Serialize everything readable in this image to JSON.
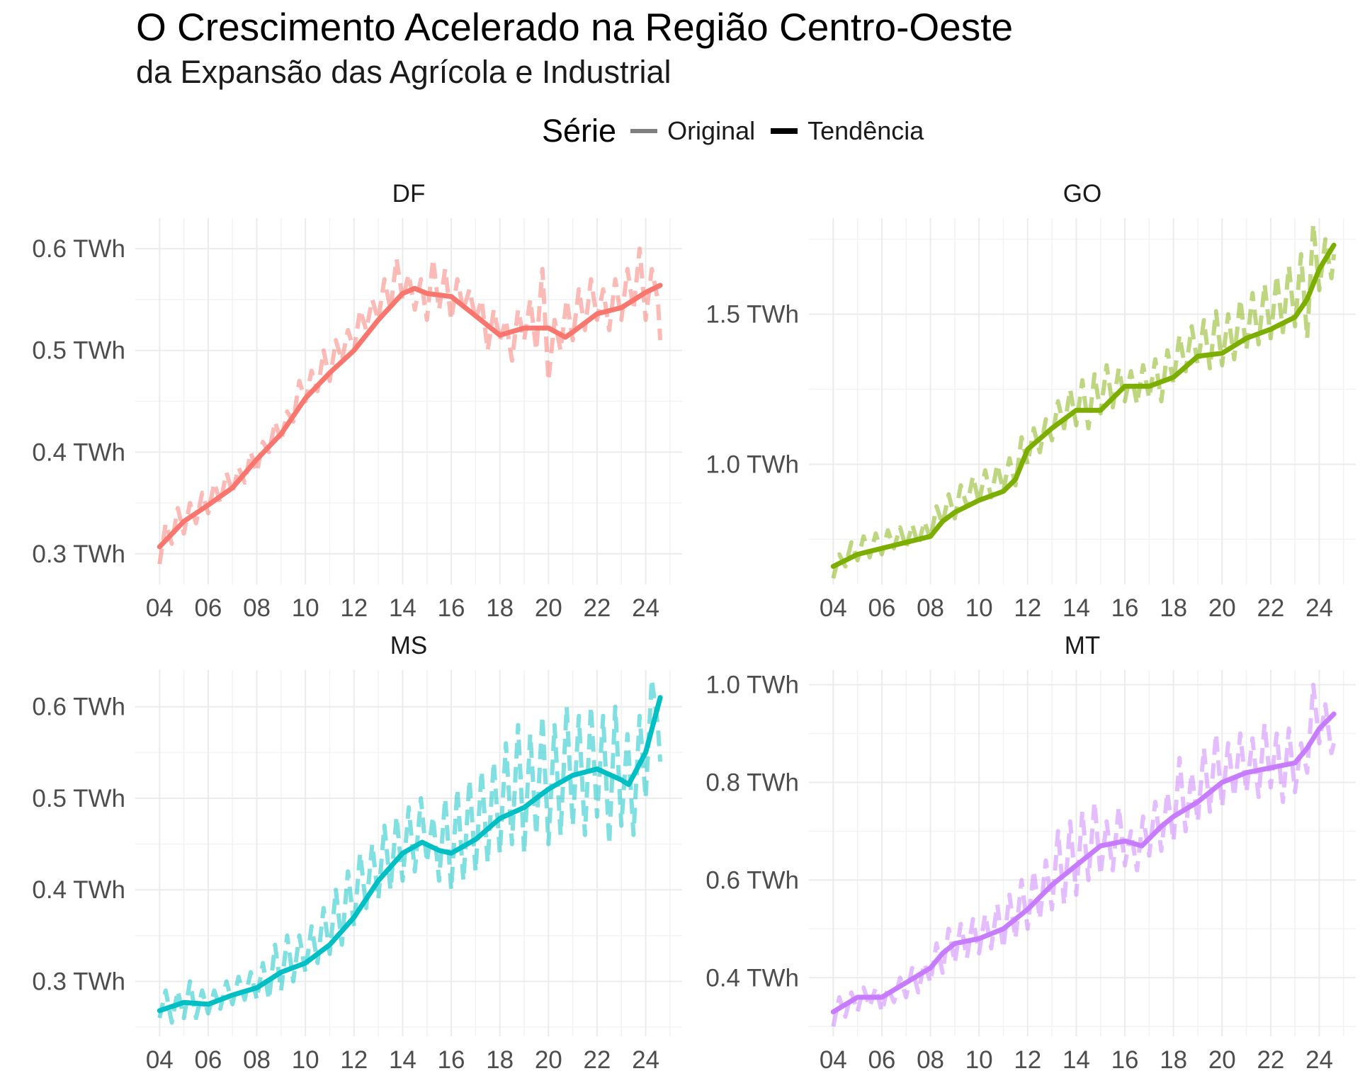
{
  "chart_data": {
    "type": "line",
    "title": "O Crescimento Acelerado na Região Centro-Oeste",
    "subtitle": "da Expansão das Agrícola e Industrial",
    "legend": {
      "title": "Série",
      "position": "top",
      "entries": [
        {
          "label": "Original",
          "style": "dashed, semi-transparent"
        },
        {
          "label": "Tendência",
          "style": "solid, thick"
        }
      ]
    },
    "grid": true,
    "x_ticks": [
      "04",
      "06",
      "08",
      "10",
      "12",
      "14",
      "16",
      "18",
      "20",
      "22",
      "24"
    ],
    "x_range": [
      2003.0,
      2025.5
    ],
    "facets": [
      {
        "name": "DF",
        "color": "#F8766D",
        "ylim": [
          0.27,
          0.63
        ],
        "y_ticks": [
          0.3,
          0.4,
          0.5,
          0.6
        ],
        "y_tick_labels": [
          "0.3 TWh",
          "0.4 TWh",
          "0.5 TWh",
          "0.6 TWh"
        ],
        "trend": {
          "x": [
            2004,
            2005,
            2006,
            2007,
            2008,
            2009,
            2010,
            2011,
            2012,
            2013,
            2014,
            2014.5,
            2015,
            2016,
            2017,
            2018,
            2019,
            2020,
            2020.7,
            2021,
            2022,
            2023,
            2024,
            2024.6
          ],
          "y": [
            0.307,
            0.332,
            0.348,
            0.365,
            0.393,
            0.418,
            0.453,
            0.478,
            0.5,
            0.53,
            0.556,
            0.561,
            0.556,
            0.553,
            0.534,
            0.515,
            0.522,
            0.522,
            0.513,
            0.518,
            0.536,
            0.542,
            0.557,
            0.564
          ]
        },
        "original": {
          "x": [
            2004,
            2004.25,
            2004.5,
            2004.75,
            2005,
            2005.25,
            2005.5,
            2005.75,
            2006,
            2006.25,
            2006.5,
            2006.75,
            2007,
            2007.25,
            2007.5,
            2007.75,
            2008,
            2008.25,
            2008.5,
            2008.75,
            2009,
            2009.25,
            2009.5,
            2009.75,
            2010,
            2010.25,
            2010.5,
            2010.75,
            2011,
            2011.25,
            2011.5,
            2011.75,
            2012,
            2012.25,
            2012.5,
            2012.75,
            2013,
            2013.25,
            2013.5,
            2013.75,
            2014,
            2014.25,
            2014.5,
            2014.75,
            2015,
            2015.25,
            2015.5,
            2015.75,
            2016,
            2016.25,
            2016.5,
            2016.75,
            2017,
            2017.25,
            2017.5,
            2017.75,
            2018,
            2018.25,
            2018.5,
            2018.75,
            2019,
            2019.25,
            2019.5,
            2019.75,
            2020,
            2020.25,
            2020.5,
            2020.75,
            2021,
            2021.25,
            2021.5,
            2021.75,
            2022,
            2022.25,
            2022.5,
            2022.75,
            2023,
            2023.25,
            2023.5,
            2023.75,
            2024,
            2024.25,
            2024.5,
            2024.6
          ],
          "y": [
            0.29,
            0.33,
            0.31,
            0.345,
            0.32,
            0.35,
            0.33,
            0.36,
            0.34,
            0.37,
            0.35,
            0.38,
            0.36,
            0.385,
            0.37,
            0.4,
            0.38,
            0.41,
            0.4,
            0.43,
            0.41,
            0.44,
            0.43,
            0.47,
            0.45,
            0.48,
            0.46,
            0.5,
            0.47,
            0.51,
            0.49,
            0.52,
            0.5,
            0.54,
            0.52,
            0.55,
            0.53,
            0.57,
            0.54,
            0.59,
            0.55,
            0.575,
            0.54,
            0.57,
            0.53,
            0.59,
            0.54,
            0.58,
            0.53,
            0.57,
            0.54,
            0.56,
            0.53,
            0.55,
            0.5,
            0.54,
            0.51,
            0.53,
            0.49,
            0.54,
            0.51,
            0.55,
            0.5,
            0.58,
            0.47,
            0.53,
            0.5,
            0.55,
            0.51,
            0.56,
            0.52,
            0.57,
            0.53,
            0.56,
            0.52,
            0.57,
            0.53,
            0.58,
            0.54,
            0.6,
            0.53,
            0.58,
            0.55,
            0.51
          ]
        }
      },
      {
        "name": "GO",
        "color": "#7CAE00",
        "ylim": [
          0.6,
          1.82
        ],
        "y_ticks": [
          1.0,
          1.5
        ],
        "y_tick_labels": [
          "1.0 TWh",
          "1.5 TWh"
        ],
        "trend": {
          "x": [
            2004,
            2005,
            2006,
            2007,
            2008,
            2008.5,
            2009,
            2010,
            2011,
            2011.5,
            2012,
            2013,
            2014,
            2015,
            2016,
            2017,
            2018,
            2019,
            2020,
            2021,
            2022,
            2023,
            2023.5,
            2024,
            2024.6
          ],
          "y": [
            0.66,
            0.7,
            0.72,
            0.74,
            0.76,
            0.81,
            0.84,
            0.88,
            0.91,
            0.95,
            1.05,
            1.12,
            1.18,
            1.18,
            1.26,
            1.26,
            1.29,
            1.36,
            1.37,
            1.42,
            1.45,
            1.49,
            1.55,
            1.65,
            1.73
          ]
        },
        "original": {
          "x": [
            2004,
            2004.25,
            2004.5,
            2004.75,
            2005,
            2005.25,
            2005.5,
            2005.75,
            2006,
            2006.25,
            2006.5,
            2006.75,
            2007,
            2007.25,
            2007.5,
            2007.75,
            2008,
            2008.25,
            2008.5,
            2008.75,
            2009,
            2009.25,
            2009.5,
            2009.75,
            2010,
            2010.25,
            2010.5,
            2010.75,
            2011,
            2011.25,
            2011.5,
            2011.75,
            2012,
            2012.25,
            2012.5,
            2012.75,
            2013,
            2013.25,
            2013.5,
            2013.75,
            2014,
            2014.25,
            2014.5,
            2014.75,
            2015,
            2015.25,
            2015.5,
            2015.75,
            2016,
            2016.25,
            2016.5,
            2016.75,
            2017,
            2017.25,
            2017.5,
            2017.75,
            2018,
            2018.25,
            2018.5,
            2018.75,
            2019,
            2019.25,
            2019.5,
            2019.75,
            2020,
            2020.25,
            2020.5,
            2020.75,
            2021,
            2021.25,
            2021.5,
            2021.75,
            2022,
            2022.25,
            2022.5,
            2022.75,
            2023,
            2023.25,
            2023.5,
            2023.75,
            2024,
            2024.25,
            2024.5,
            2024.6
          ],
          "y": [
            0.62,
            0.7,
            0.66,
            0.74,
            0.68,
            0.76,
            0.69,
            0.77,
            0.7,
            0.78,
            0.72,
            0.79,
            0.72,
            0.8,
            0.73,
            0.81,
            0.75,
            0.86,
            0.8,
            0.9,
            0.82,
            0.93,
            0.86,
            0.96,
            0.87,
            0.98,
            0.89,
            1.0,
            0.91,
            1.02,
            0.93,
            1.09,
            1.0,
            1.12,
            1.04,
            1.15,
            1.08,
            1.21,
            1.12,
            1.25,
            1.13,
            1.28,
            1.12,
            1.3,
            1.17,
            1.33,
            1.19,
            1.32,
            1.21,
            1.31,
            1.2,
            1.33,
            1.22,
            1.35,
            1.21,
            1.38,
            1.27,
            1.43,
            1.31,
            1.46,
            1.33,
            1.48,
            1.32,
            1.51,
            1.33,
            1.5,
            1.35,
            1.55,
            1.38,
            1.57,
            1.4,
            1.6,
            1.42,
            1.63,
            1.44,
            1.66,
            1.46,
            1.7,
            1.42,
            1.8,
            1.58,
            1.75,
            1.62,
            1.7
          ]
        }
      },
      {
        "name": "MS",
        "color": "#00BFC4",
        "ylim": [
          0.24,
          0.64
        ],
        "y_ticks": [
          0.3,
          0.4,
          0.5,
          0.6
        ],
        "y_tick_labels": [
          "0.3 TWh",
          "0.4 TWh",
          "0.5 TWh",
          "0.6 TWh"
        ],
        "trend": {
          "x": [
            2004,
            2005,
            2006,
            2007,
            2008,
            2009,
            2010,
            2011,
            2012,
            2013,
            2014,
            2014.8,
            2015.5,
            2016,
            2017,
            2018,
            2019,
            2020,
            2021,
            2022,
            2023,
            2023.3,
            2024,
            2024.6
          ],
          "y": [
            0.268,
            0.277,
            0.275,
            0.285,
            0.293,
            0.31,
            0.32,
            0.34,
            0.37,
            0.41,
            0.44,
            0.452,
            0.443,
            0.44,
            0.455,
            0.478,
            0.49,
            0.51,
            0.525,
            0.532,
            0.52,
            0.515,
            0.55,
            0.61
          ]
        },
        "original": {
          "x": [
            2004,
            2004.25,
            2004.5,
            2004.75,
            2005,
            2005.25,
            2005.5,
            2005.75,
            2006,
            2006.25,
            2006.5,
            2006.75,
            2007,
            2007.25,
            2007.5,
            2007.75,
            2008,
            2008.25,
            2008.5,
            2008.75,
            2009,
            2009.25,
            2009.5,
            2009.75,
            2010,
            2010.25,
            2010.5,
            2010.75,
            2011,
            2011.25,
            2011.5,
            2011.75,
            2012,
            2012.25,
            2012.5,
            2012.75,
            2013,
            2013.25,
            2013.5,
            2013.75,
            2014,
            2014.25,
            2014.5,
            2014.75,
            2015,
            2015.25,
            2015.5,
            2015.75,
            2016,
            2016.25,
            2016.5,
            2016.75,
            2017,
            2017.25,
            2017.5,
            2017.75,
            2018,
            2018.25,
            2018.5,
            2018.75,
            2019,
            2019.25,
            2019.5,
            2019.75,
            2020,
            2020.25,
            2020.5,
            2020.75,
            2021,
            2021.25,
            2021.5,
            2021.75,
            2022,
            2022.25,
            2022.5,
            2022.75,
            2023,
            2023.25,
            2023.5,
            2023.75,
            2024,
            2024.25,
            2024.5,
            2024.6
          ],
          "y": [
            0.26,
            0.29,
            0.255,
            0.29,
            0.26,
            0.3,
            0.26,
            0.29,
            0.265,
            0.29,
            0.27,
            0.3,
            0.275,
            0.305,
            0.28,
            0.31,
            0.28,
            0.32,
            0.28,
            0.34,
            0.29,
            0.35,
            0.3,
            0.35,
            0.31,
            0.36,
            0.32,
            0.38,
            0.33,
            0.4,
            0.34,
            0.42,
            0.36,
            0.44,
            0.38,
            0.45,
            0.39,
            0.47,
            0.4,
            0.48,
            0.41,
            0.49,
            0.42,
            0.5,
            0.43,
            0.48,
            0.41,
            0.5,
            0.4,
            0.51,
            0.41,
            0.52,
            0.42,
            0.53,
            0.43,
            0.54,
            0.44,
            0.56,
            0.45,
            0.58,
            0.44,
            0.57,
            0.46,
            0.59,
            0.45,
            0.58,
            0.46,
            0.6,
            0.47,
            0.59,
            0.46,
            0.6,
            0.48,
            0.59,
            0.45,
            0.6,
            0.47,
            0.57,
            0.46,
            0.59,
            0.5,
            0.63,
            0.58,
            0.54
          ]
        }
      },
      {
        "name": "MT",
        "color": "#C77CFF",
        "ylim": [
          0.28,
          1.03
        ],
        "y_ticks": [
          0.4,
          0.6,
          0.8,
          1.0
        ],
        "y_tick_labels": [
          "0.4 TWh",
          "0.6 TWh",
          "0.8 TWh",
          "1.0 TWh"
        ],
        "trend": {
          "x": [
            2004,
            2005,
            2006,
            2007,
            2008,
            2008.5,
            2009,
            2010,
            2011,
            2012,
            2013,
            2014,
            2015,
            2016,
            2016.7,
            2017.5,
            2018,
            2019,
            2020,
            2021,
            2022,
            2023,
            2023.5,
            2024,
            2024.6
          ],
          "y": [
            0.33,
            0.36,
            0.36,
            0.39,
            0.42,
            0.45,
            0.47,
            0.48,
            0.5,
            0.54,
            0.59,
            0.63,
            0.67,
            0.68,
            0.67,
            0.71,
            0.73,
            0.76,
            0.8,
            0.82,
            0.83,
            0.84,
            0.87,
            0.91,
            0.94
          ]
        },
        "original": {
          "x": [
            2004,
            2004.25,
            2004.5,
            2004.75,
            2005,
            2005.25,
            2005.5,
            2005.75,
            2006,
            2006.25,
            2006.5,
            2006.75,
            2007,
            2007.25,
            2007.5,
            2007.75,
            2008,
            2008.25,
            2008.5,
            2008.75,
            2009,
            2009.25,
            2009.5,
            2009.75,
            2010,
            2010.25,
            2010.5,
            2010.75,
            2011,
            2011.25,
            2011.5,
            2011.75,
            2012,
            2012.25,
            2012.5,
            2012.75,
            2013,
            2013.25,
            2013.5,
            2013.75,
            2014,
            2014.25,
            2014.5,
            2014.75,
            2015,
            2015.25,
            2015.5,
            2015.75,
            2016,
            2016.25,
            2016.5,
            2016.75,
            2017,
            2017.25,
            2017.5,
            2017.75,
            2018,
            2018.25,
            2018.5,
            2018.75,
            2019,
            2019.25,
            2019.5,
            2019.75,
            2020,
            2020.25,
            2020.5,
            2020.75,
            2021,
            2021.25,
            2021.5,
            2021.75,
            2022,
            2022.25,
            2022.5,
            2022.75,
            2023,
            2023.25,
            2023.5,
            2023.75,
            2024,
            2024.25,
            2024.5,
            2024.6
          ],
          "y": [
            0.3,
            0.36,
            0.32,
            0.37,
            0.33,
            0.38,
            0.34,
            0.38,
            0.33,
            0.38,
            0.35,
            0.4,
            0.36,
            0.42,
            0.37,
            0.43,
            0.39,
            0.47,
            0.41,
            0.5,
            0.43,
            0.51,
            0.44,
            0.52,
            0.45,
            0.53,
            0.46,
            0.55,
            0.46,
            0.57,
            0.48,
            0.6,
            0.5,
            0.62,
            0.52,
            0.64,
            0.54,
            0.7,
            0.55,
            0.72,
            0.57,
            0.74,
            0.6,
            0.76,
            0.61,
            0.72,
            0.62,
            0.75,
            0.63,
            0.7,
            0.62,
            0.73,
            0.65,
            0.76,
            0.66,
            0.78,
            0.68,
            0.85,
            0.7,
            0.82,
            0.72,
            0.87,
            0.74,
            0.9,
            0.75,
            0.88,
            0.77,
            0.9,
            0.78,
            0.89,
            0.77,
            0.92,
            0.79,
            0.9,
            0.76,
            0.91,
            0.78,
            0.88,
            0.82,
            1.0,
            0.88,
            0.96,
            0.86,
            0.88
          ]
        }
      }
    ]
  }
}
